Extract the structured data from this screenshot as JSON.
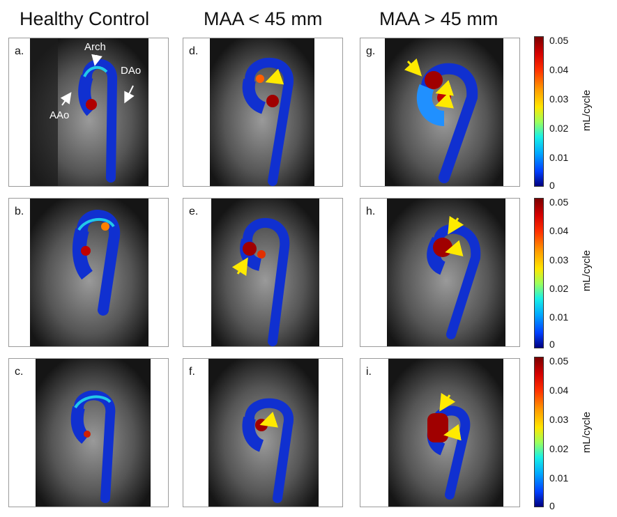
{
  "columns": [
    "Healthy Control",
    "MAA < 45 mm",
    "MAA > 45 mm"
  ],
  "panels": [
    {
      "label": "a."
    },
    {
      "label": "b."
    },
    {
      "label": "c."
    },
    {
      "label": "d."
    },
    {
      "label": "e."
    },
    {
      "label": "f."
    },
    {
      "label": "g."
    },
    {
      "label": "h."
    },
    {
      "label": "i."
    }
  ],
  "annotations": {
    "arch": "Arch",
    "dao": "DAo",
    "aao": "AAo"
  },
  "colorbar": {
    "title": "mL/cycle",
    "ticks": [
      "0.05",
      "0.04",
      "0.03",
      "0.02",
      "0.01",
      "0"
    ],
    "colors": {
      "high": "#7a0000",
      "mid": "#ffe600",
      "low": "#00007f"
    }
  },
  "arrow_color": "#ffea00"
}
